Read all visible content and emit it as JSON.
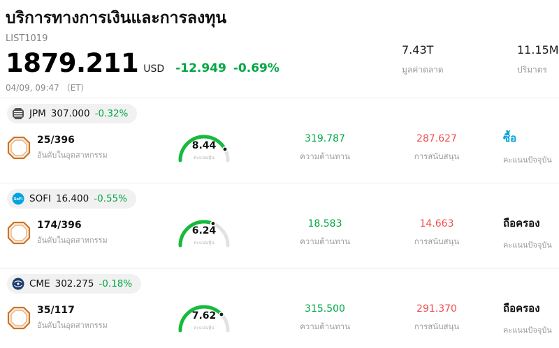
{
  "colors": {
    "green": "#00a843",
    "red": "#f04e4e",
    "buy_blue": "#00a2d8",
    "hold_black": "#111111",
    "gauge_green": "#15bb3c",
    "gauge_track": "#e2e2e2"
  },
  "header": {
    "title": "บริการทางการเงินและการลงทุน",
    "list_id": "LIST1019",
    "price": "1879.211",
    "currency": "USD",
    "change": "-12.949",
    "change_pct": "-0.69%",
    "datetime": "04/09, 09:47 （ET）",
    "stats": [
      {
        "value": "7.43T",
        "label": "มูลค่าตลาด"
      },
      {
        "value": "11.15M",
        "label": "ปริมาตร"
      }
    ]
  },
  "gauge_label": "คะแนนหุ้น",
  "stocks": [
    {
      "ticker": "JPM",
      "price": "307.000",
      "change": "-0.32%",
      "rank": "25/396",
      "rank_label": "อันดับในอุตสาหกรรม",
      "score": "8.44",
      "resistance": "319.787",
      "resistance_label": "ความต้านทาน",
      "support": "287.627",
      "support_label": "การสนับสนุน",
      "recommendation": "ซื้อ",
      "recommendation_label": "คะแนนปัจจุบัน",
      "recommendation_color": "#00a2d8"
    },
    {
      "ticker": "SOFI",
      "price": "16.400",
      "change": "-0.55%",
      "rank": "174/396",
      "rank_label": "อันดับในอุตสาหกรรม",
      "score": "6.24",
      "resistance": "18.583",
      "resistance_label": "ความต้านทาน",
      "support": "14.663",
      "support_label": "การสนับสนุน",
      "recommendation": "ถือครอง",
      "recommendation_label": "คะแนนปัจจุบัน",
      "recommendation_color": "#111111"
    },
    {
      "ticker": "CME",
      "price": "302.275",
      "change": "-0.18%",
      "rank": "35/117",
      "rank_label": "อันดับในอุตสาหกรรม",
      "score": "7.62",
      "resistance": "315.500",
      "resistance_label": "ความต้านทาน",
      "support": "291.370",
      "support_label": "การสนับสนุน",
      "recommendation": "ถือครอง",
      "recommendation_label": "คะแนนปัจจุบัน",
      "recommendation_color": "#111111"
    }
  ]
}
